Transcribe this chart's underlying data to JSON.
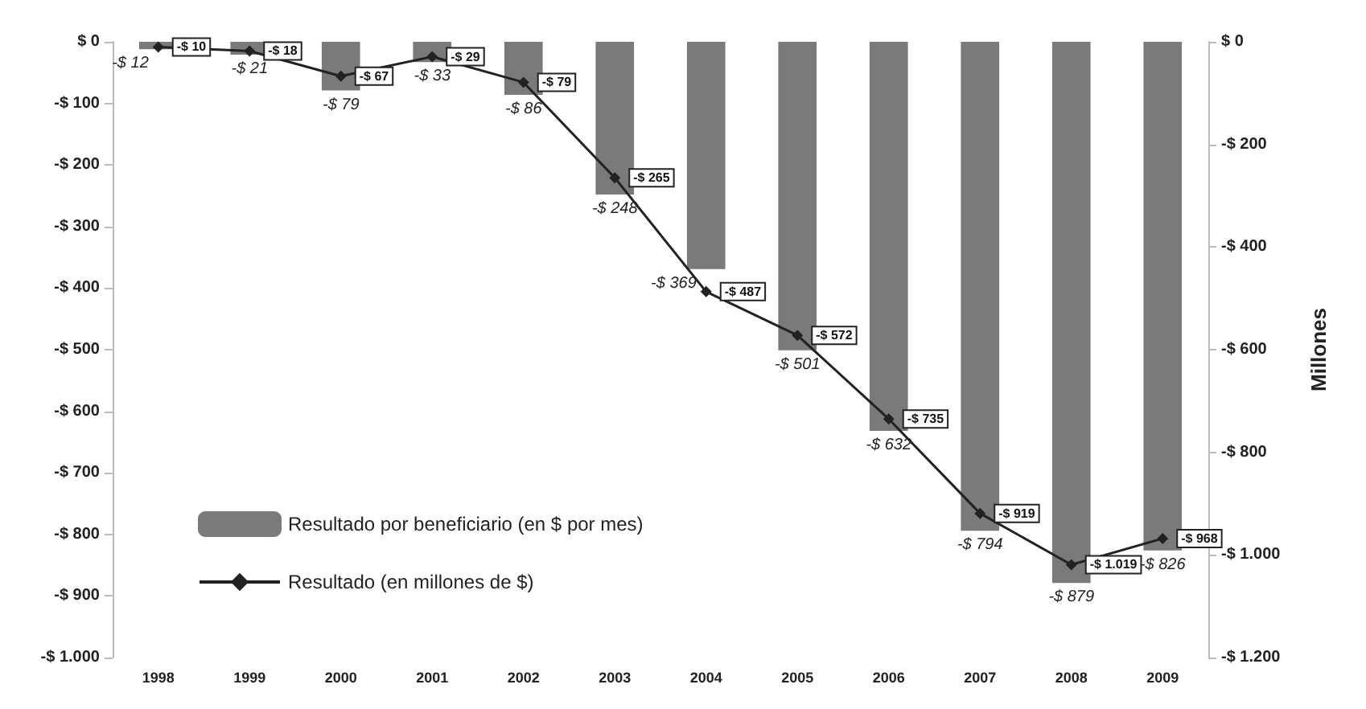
{
  "chart_data": {
    "type": "bar",
    "categories": [
      "1998",
      "1999",
      "2000",
      "2001",
      "2002",
      "2003",
      "2004",
      "2005",
      "2006",
      "2007",
      "2008",
      "2009"
    ],
    "series": [
      {
        "name": "Resultado por beneficiario (en $ por mes)",
        "type": "bar",
        "color": "#7a7a7a",
        "values": [
          -12,
          -21,
          -79,
          -33,
          -86,
          -248,
          -369,
          -501,
          -632,
          -794,
          -879,
          -826
        ],
        "value_labels": [
          "-$ 12",
          "-$ 21",
          "-$ 79",
          "-$ 33",
          "-$ 86",
          "-$ 248",
          "-$ 369",
          "-$ 501",
          "-$ 632",
          "-$ 794",
          "-$ 879",
          "-$ 826"
        ]
      },
      {
        "name": "Resultado (en millones de $)",
        "type": "line",
        "axis": "y2",
        "color": "#222222",
        "marker": "diamond",
        "values": [
          -10,
          -18,
          -67,
          -29,
          -79,
          -265,
          -487,
          -572,
          -735,
          -919,
          -1019,
          -968
        ],
        "value_labels": [
          "-$ 10",
          "-$ 18",
          "-$ 67",
          "-$ 29",
          "-$ 79",
          "-$ 265",
          "-$ 487",
          "-$ 572",
          "-$ 735",
          "-$ 919",
          "-$ 1.019",
          "-$ 968"
        ]
      }
    ],
    "y2label": "Millones",
    "ylim": [
      -1000,
      0
    ],
    "yticks": [
      {
        "value": 0,
        "label": "$ 0"
      },
      {
        "value": -100,
        "label": "-$ 100"
      },
      {
        "value": -200,
        "label": "-$ 200"
      },
      {
        "value": -300,
        "label": "-$ 300"
      },
      {
        "value": -400,
        "label": "-$ 400"
      },
      {
        "value": -500,
        "label": "-$ 500"
      },
      {
        "value": -600,
        "label": "-$ 600"
      },
      {
        "value": -700,
        "label": "-$ 700"
      },
      {
        "value": -800,
        "label": "-$ 800"
      },
      {
        "value": -900,
        "label": "-$ 900"
      },
      {
        "value": -1000,
        "label": "-$ 1.000"
      }
    ],
    "y2lim": [
      -1200,
      0
    ],
    "y2ticks": [
      {
        "value": 0,
        "label": "$ 0"
      },
      {
        "value": -200,
        "label": "-$ 200"
      },
      {
        "value": -400,
        "label": "-$ 400"
      },
      {
        "value": -600,
        "label": "-$ 600"
      },
      {
        "value": -800,
        "label": "-$ 800"
      },
      {
        "value": -1000,
        "label": "-$ 1.000"
      },
      {
        "value": -1200,
        "label": "-$ 1.200"
      }
    ],
    "legend": "left",
    "grid": false
  }
}
